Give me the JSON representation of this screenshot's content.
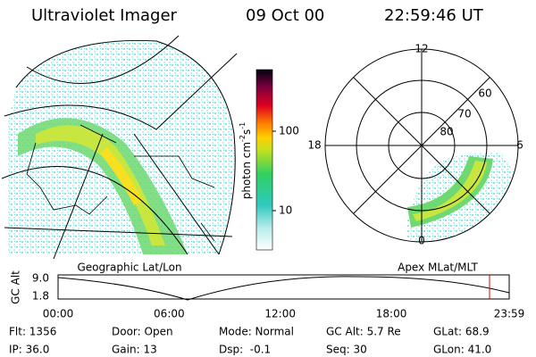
{
  "header": {
    "instrument": "Ultraviolet Imager",
    "date": "09 Oct 00",
    "time": "22:59:46 UT"
  },
  "colorbar": {
    "unit": [
      "photon cm",
      "-2",
      "s",
      "-1"
    ],
    "ticks": [
      "100",
      "10"
    ]
  },
  "polar": {
    "top": "12",
    "left": "18",
    "right": "6",
    "bottom": "0",
    "lat_labels": [
      "60",
      "70",
      "80"
    ]
  },
  "captions": {
    "left": "Geographic Lat/Lon",
    "right": "Apex MLat/MLT"
  },
  "altitude_plot": {
    "ylabel": "GC Alt",
    "yticks": [
      "9.0",
      "1.8"
    ],
    "xticks": [
      "00:00",
      "06:00",
      "12:00",
      "18:00",
      "23:59"
    ]
  },
  "status": {
    "rows": [
      [
        "Flt: 1356",
        "Door: Open",
        "Mode: Normal",
        "GC Alt: 5.7 Re",
        "GLat: 68.9"
      ],
      [
        "IP: 36.0",
        "Gain: 13",
        "Dsp:  -0.1",
        "Seq: 30",
        "GLon: 41.0"
      ]
    ]
  }
}
